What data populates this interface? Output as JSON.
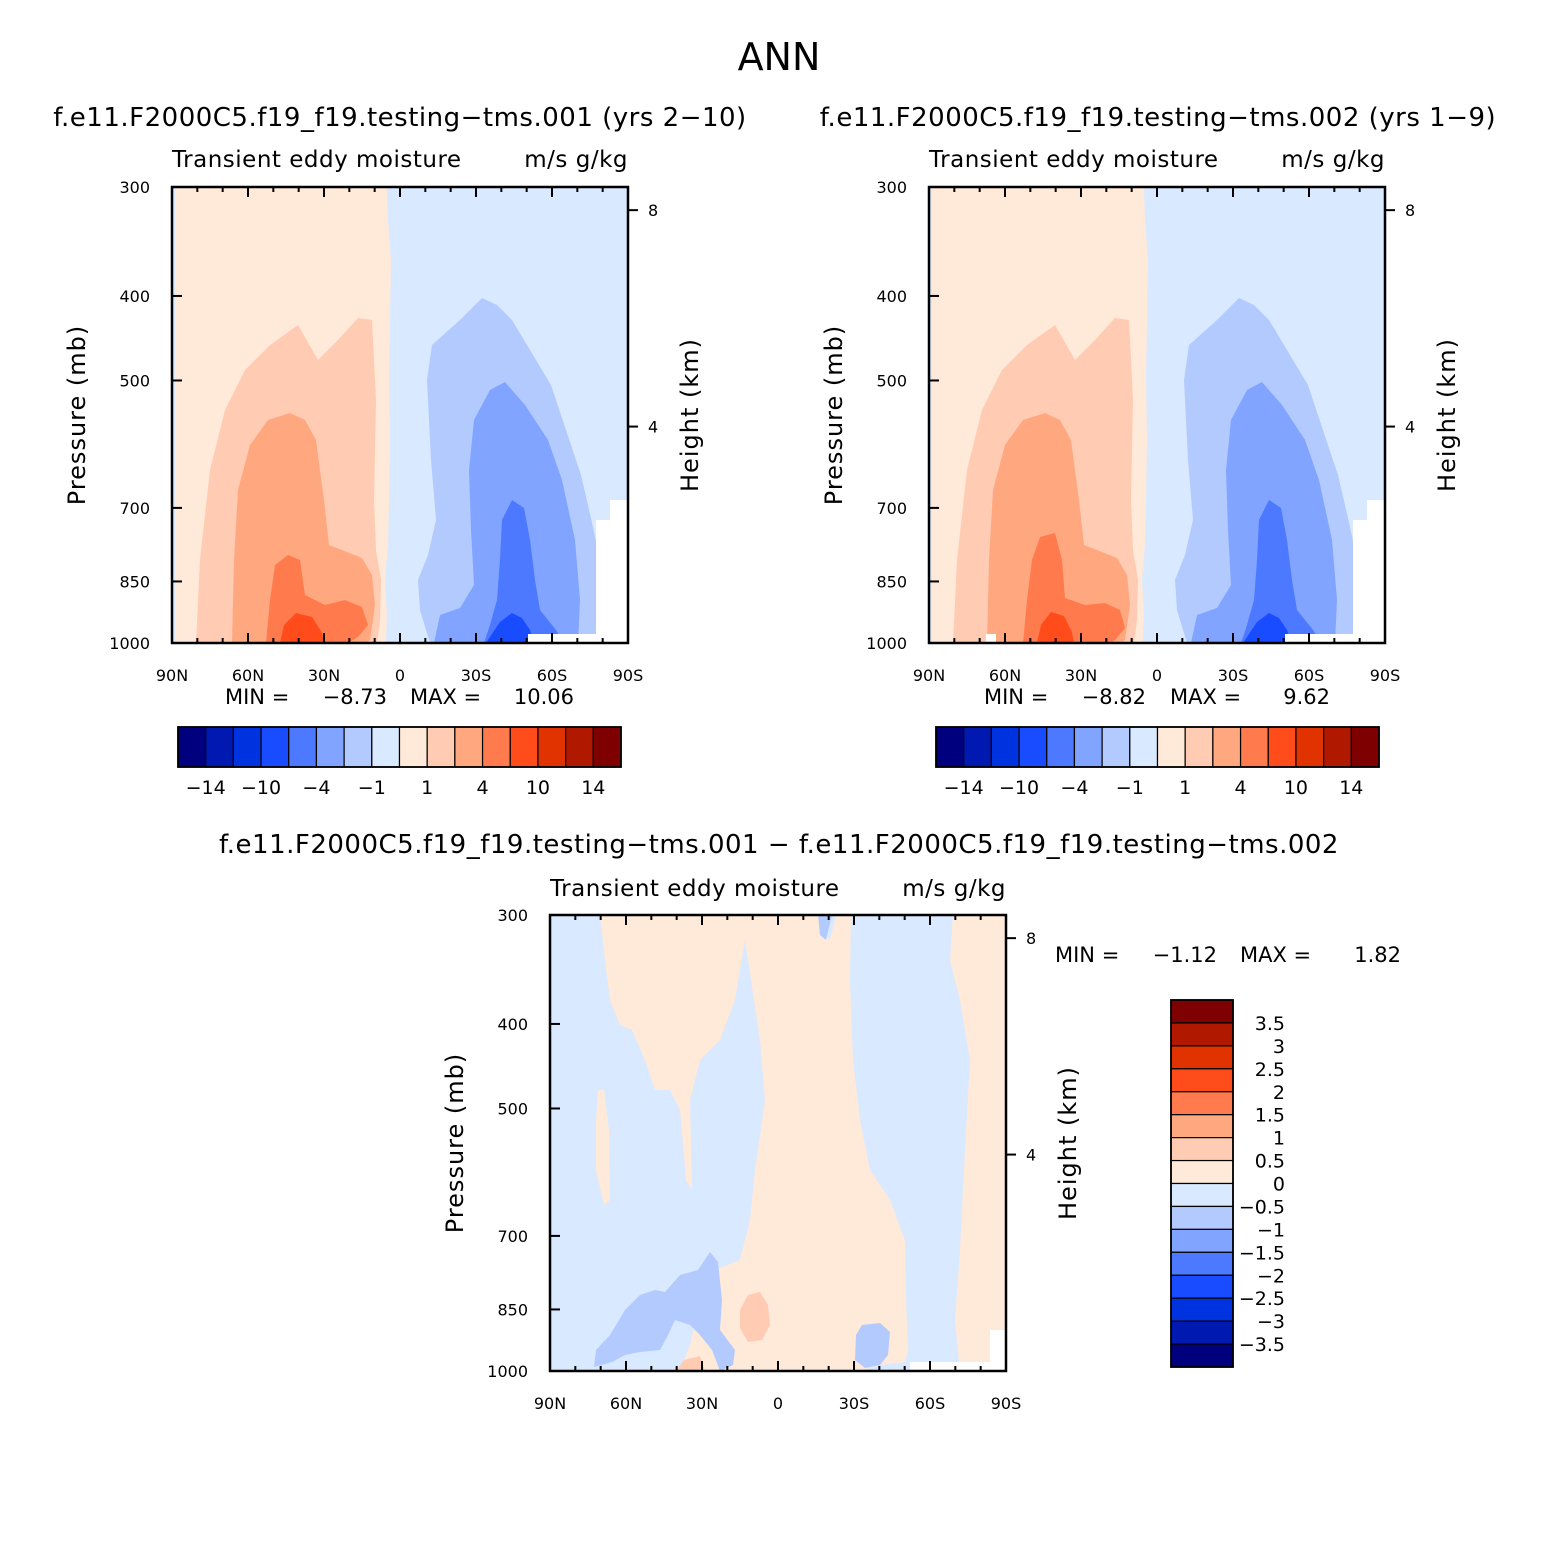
{
  "figure_title": "ANN",
  "colors": {
    "abs_scale": [
      "#00007f",
      "#0019b0",
      "#0033e0",
      "#1a4cff",
      "#4c79ff",
      "#80a4ff",
      "#b3caff",
      "#d9e9ff",
      "#ffe9d9",
      "#ffcbb3",
      "#ffa880",
      "#ff7a4c",
      "#ff4c1a",
      "#e03300",
      "#b01900",
      "#7f0000"
    ],
    "diff_scale": [
      "#00007f",
      "#0019b0",
      "#0033e0",
      "#1a4cff",
      "#4c79ff",
      "#80a4ff",
      "#b3caff",
      "#d9e9ff",
      "#ffe9d9",
      "#ffcbb3",
      "#ffa880",
      "#ff7a4c",
      "#ff4c1a",
      "#e03300",
      "#b01900",
      "#7f0000"
    ]
  },
  "chart_data": [
    {
      "type": "heatmap",
      "title": "f.e11.F2000C5.f19_f19.testing−tms.001 (yrs 2−10)",
      "subtitle_left": "Transient  eddy  moisture",
      "subtitle_right": "m/s  g/kg",
      "ylabel": "Pressure  (mb)",
      "ylabel_right": "Height  (km)",
      "x_ticks": [
        "90N",
        "60N",
        "30N",
        "0",
        "30S",
        "60S",
        "90S"
      ],
      "x_values": [
        90,
        60,
        30,
        0,
        -30,
        -60,
        -90
      ],
      "y_ticks": [
        "300",
        "400",
        "500",
        "700",
        "850",
        "1000"
      ],
      "y_values": [
        300,
        400,
        500,
        700,
        850,
        1000
      ],
      "ylim": [
        1000,
        300
      ],
      "y_log": true,
      "height_ticks": [
        "8",
        "4"
      ],
      "height_values": [
        8,
        4
      ],
      "min_label": "MIN =",
      "min_value": "−8.73",
      "max_label": "MAX =",
      "max_value": "10.06",
      "levels": [
        -14,
        -12,
        -10,
        -7,
        -4,
        -2,
        -1,
        0,
        1,
        2,
        4,
        7,
        10,
        12,
        14
      ],
      "colorbar_labels": [
        "−14",
        "−10",
        "−4",
        "−1",
        "1",
        "4",
        "10",
        "14"
      ],
      "colorbar_label_values": [
        -14,
        -10,
        -4,
        -1,
        1,
        4,
        10,
        14
      ],
      "min": -8.73,
      "max": 10.06
    },
    {
      "type": "heatmap",
      "title": "f.e11.F2000C5.f19_f19.testing−tms.002 (yrs 1−9)",
      "subtitle_left": "Transient  eddy  moisture",
      "subtitle_right": "m/s  g/kg",
      "ylabel": "Pressure  (mb)",
      "ylabel_right": "Height  (km)",
      "x_ticks": [
        "90N",
        "60N",
        "30N",
        "0",
        "30S",
        "60S",
        "90S"
      ],
      "x_values": [
        90,
        60,
        30,
        0,
        -30,
        -60,
        -90
      ],
      "y_ticks": [
        "300",
        "400",
        "500",
        "700",
        "850",
        "1000"
      ],
      "y_values": [
        300,
        400,
        500,
        700,
        850,
        1000
      ],
      "ylim": [
        1000,
        300
      ],
      "y_log": true,
      "height_ticks": [
        "8",
        "4"
      ],
      "height_values": [
        8,
        4
      ],
      "min_label": "MIN =",
      "min_value": "−8.82",
      "max_label": "MAX =",
      "max_value": "9.62",
      "levels": [
        -14,
        -12,
        -10,
        -7,
        -4,
        -2,
        -1,
        0,
        1,
        2,
        4,
        7,
        10,
        12,
        14
      ],
      "colorbar_labels": [
        "−14",
        "−10",
        "−4",
        "−1",
        "1",
        "4",
        "10",
        "14"
      ],
      "colorbar_label_values": [
        -14,
        -10,
        -4,
        -1,
        1,
        4,
        10,
        14
      ],
      "min": -8.82,
      "max": 9.62
    },
    {
      "type": "heatmap",
      "title": "f.e11.F2000C5.f19_f19.testing−tms.001  −  f.e11.F2000C5.f19_f19.testing−tms.002",
      "subtitle_left": "Transient  eddy  moisture",
      "subtitle_right": "m/s  g/kg",
      "ylabel": "Pressure  (mb)",
      "ylabel_right": "Height  (km)",
      "x_ticks": [
        "90N",
        "60N",
        "30N",
        "0",
        "30S",
        "60S",
        "90S"
      ],
      "x_values": [
        90,
        60,
        30,
        0,
        -30,
        -60,
        -90
      ],
      "y_ticks": [
        "300",
        "400",
        "500",
        "700",
        "850",
        "1000"
      ],
      "y_values": [
        300,
        400,
        500,
        700,
        850,
        1000
      ],
      "ylim": [
        1000,
        300
      ],
      "y_log": true,
      "height_ticks": [
        "8",
        "4"
      ],
      "height_values": [
        8,
        4
      ],
      "min_label": "MIN =",
      "min_value": "−1.12",
      "max_label": "MAX =",
      "max_value": "1.82",
      "levels": [
        -3.5,
        -3,
        -2.5,
        -2,
        -1.5,
        -1,
        -0.5,
        0,
        0.5,
        1,
        1.5,
        2,
        2.5,
        3,
        3.5
      ],
      "colorbar_labels": [
        "3.5",
        "3",
        "2.5",
        "2",
        "1.5",
        "1",
        "0.5",
        "0",
        "−0.5",
        "−1",
        "−1.5",
        "−2",
        "−2.5",
        "−3",
        "−3.5"
      ],
      "min": -1.12,
      "max": 1.82
    }
  ]
}
